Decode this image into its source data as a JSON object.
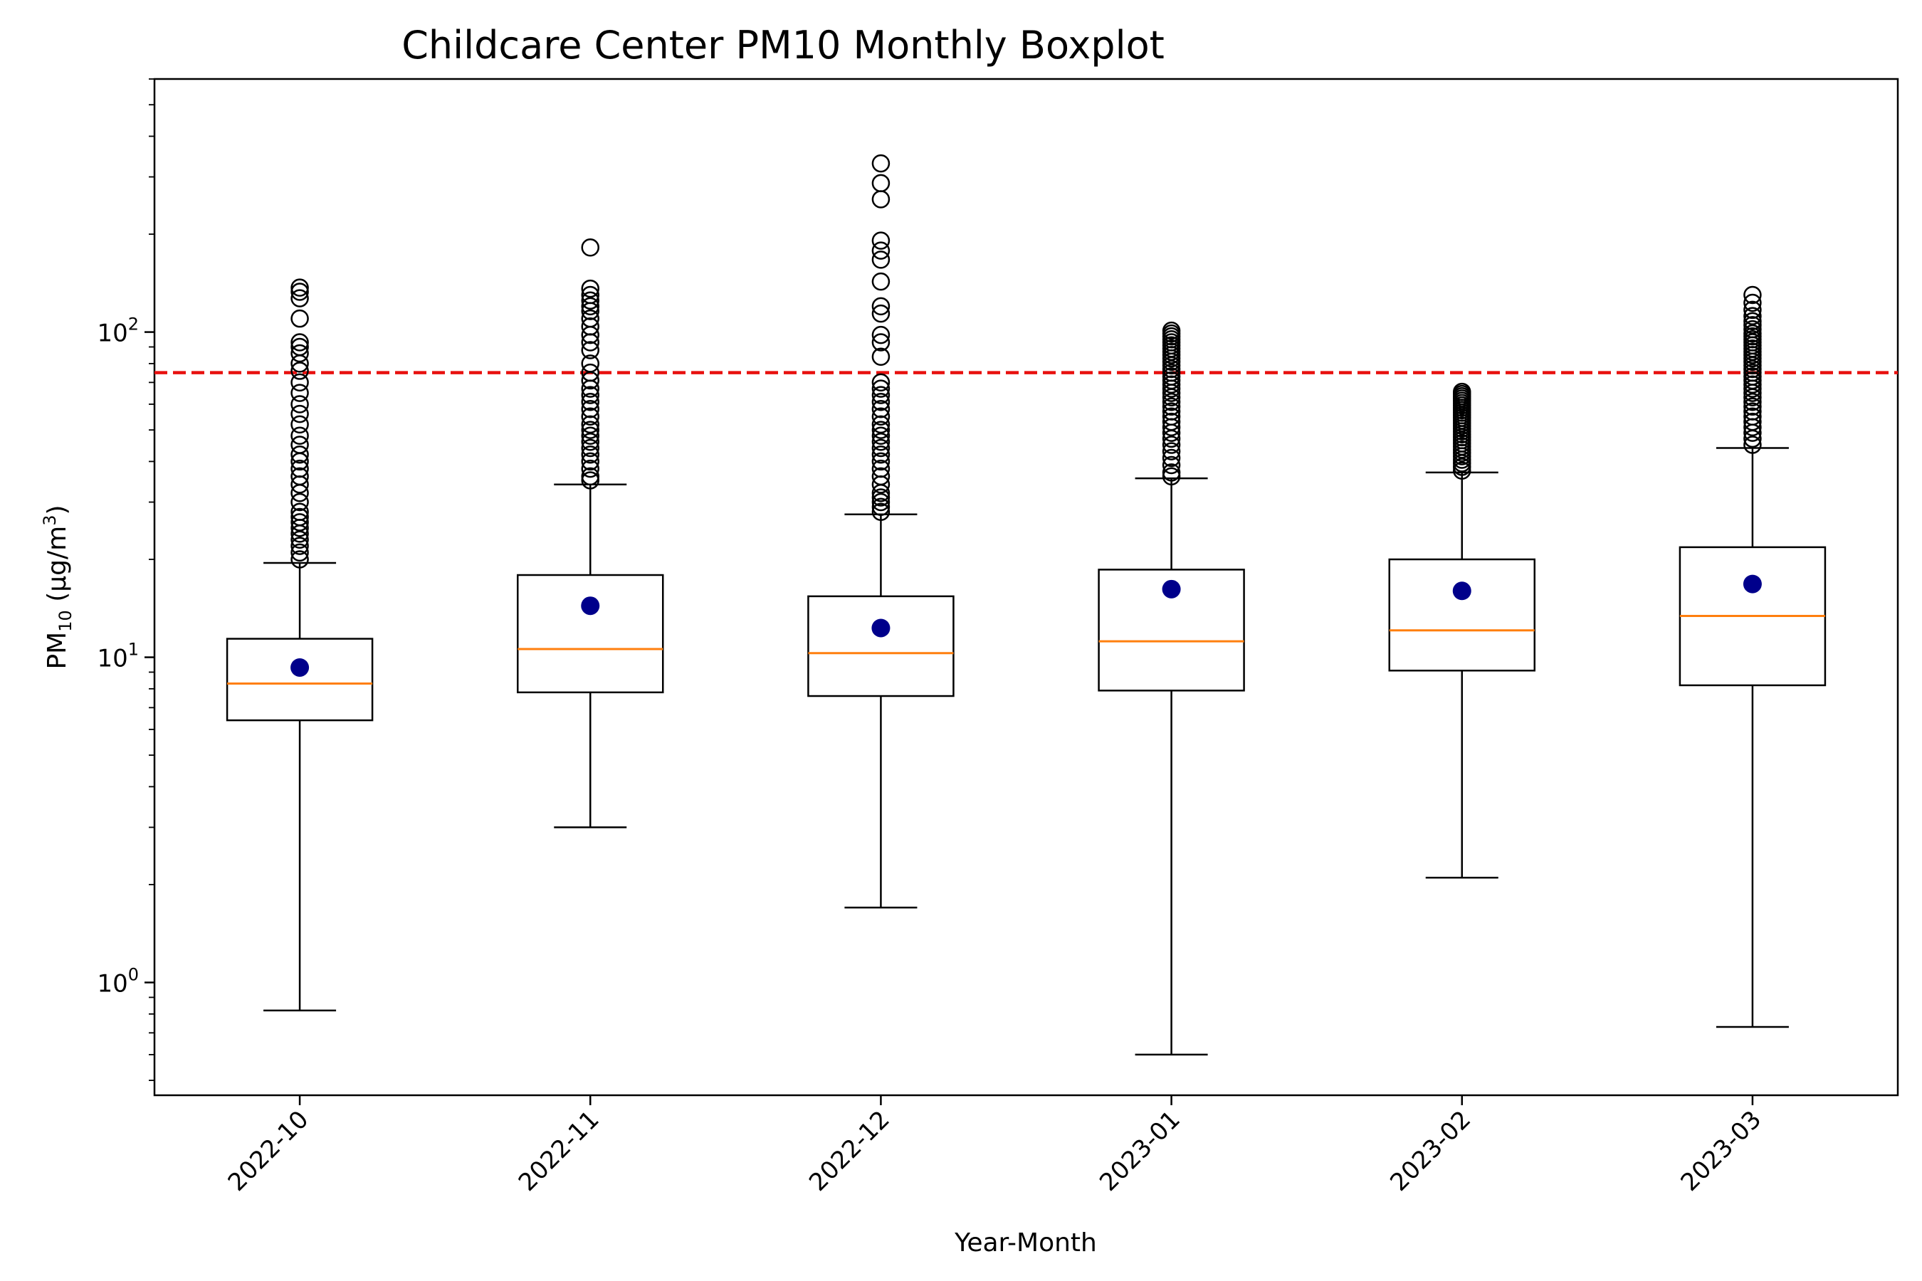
{
  "chart_data": {
    "type": "box",
    "title": "Childcare Center PM10 Monthly Boxplot",
    "xlabel": "Year-Month",
    "ylabel": {
      "prefix": "PM",
      "subscript": "10",
      "unit_open": " (µg/m",
      "unit_superscript": "3",
      "unit_close": ")"
    },
    "yscale": "log",
    "ylim": [
      0.45,
      600
    ],
    "yticks": [
      {
        "value": 1,
        "base": "10",
        "exponent": "0"
      },
      {
        "value": 10,
        "base": "10",
        "exponent": "1"
      },
      {
        "value": 100,
        "base": "10",
        "exponent": "2"
      }
    ],
    "categories": [
      "2022-10",
      "2022-11",
      "2022-12",
      "2023-01",
      "2023-02",
      "2023-03"
    ],
    "boxes": [
      {
        "whisker_low": 0.82,
        "q1": 6.4,
        "median": 8.3,
        "q3": 11.4,
        "whisker_high": 19.5,
        "mean": 9.3,
        "outliers": [
          20,
          21,
          22,
          23,
          24,
          25,
          26,
          27,
          28,
          30,
          32,
          34,
          36,
          38,
          40,
          42,
          45,
          48,
          52,
          56,
          60,
          65,
          70,
          76,
          80,
          86,
          90,
          93,
          110,
          127,
          133,
          137
        ]
      },
      {
        "whisker_low": 3.0,
        "q1": 7.8,
        "median": 10.6,
        "q3": 17.9,
        "whisker_high": 34,
        "mean": 14.4,
        "outliers": [
          35,
          36,
          38,
          40,
          42,
          44,
          46,
          48,
          50,
          52,
          55,
          58,
          61,
          64,
          67,
          71,
          75,
          80,
          88,
          93,
          98,
          104,
          110,
          116,
          120,
          125,
          130,
          136,
          182
        ]
      },
      {
        "whisker_low": 1.7,
        "q1": 7.6,
        "median": 10.3,
        "q3": 15.4,
        "whisker_high": 27.5,
        "mean": 12.3,
        "outliers": [
          28,
          29,
          30,
          31,
          32,
          34,
          36,
          38,
          40,
          42,
          44,
          46,
          48,
          50,
          52,
          55,
          58,
          61,
          64,
          67,
          70,
          84,
          93,
          98,
          114,
          120,
          143,
          167,
          178,
          191,
          256,
          287,
          330
        ]
      },
      {
        "whisker_low": 0.6,
        "q1": 7.9,
        "median": 11.2,
        "q3": 18.6,
        "whisker_high": 35.5,
        "mean": 16.2,
        "outliers": [
          36,
          37,
          39,
          41,
          43,
          45,
          47,
          49,
          51,
          53,
          55,
          57,
          59,
          61,
          63,
          65,
          67,
          69,
          71,
          73,
          75,
          77,
          79,
          81,
          83,
          85,
          87,
          89,
          91,
          93,
          95,
          97,
          99,
          101
        ]
      },
      {
        "whisker_low": 2.1,
        "q1": 9.1,
        "median": 12.1,
        "q3": 20.0,
        "whisker_high": 37,
        "mean": 16.0,
        "outliers": [
          37.5,
          38.5,
          39.5,
          40.5,
          41.5,
          42.5,
          43.5,
          44.5,
          45.5,
          46.5,
          47.5,
          48.5,
          49.5,
          50.5,
          51.5,
          52.5,
          53.5,
          54.5,
          55.5,
          56.5,
          57.5,
          58.5,
          59.5,
          60.5,
          61.5,
          62.5,
          63.5,
          64.5,
          65.5
        ]
      },
      {
        "whisker_low": 0.73,
        "q1": 8.2,
        "median": 13.4,
        "q3": 21.8,
        "whisker_high": 44,
        "mean": 16.8,
        "outliers": [
          45,
          47,
          49,
          51,
          53,
          55,
          57,
          59,
          61,
          63,
          65,
          67,
          69,
          71,
          73,
          75,
          77,
          79,
          81,
          83,
          85,
          87,
          89,
          91,
          93,
          95,
          97,
          99,
          102,
          105,
          108,
          112,
          117,
          123,
          130
        ]
      }
    ],
    "reference_line": {
      "value": 75,
      "color": "#e8110f",
      "style": "dashed"
    },
    "colors": {
      "box": "#000000",
      "median": "#ff7f0e",
      "mean": "#00008b",
      "outlier": "#000000",
      "frame": "#000000"
    },
    "grid": false,
    "legend": "none"
  }
}
